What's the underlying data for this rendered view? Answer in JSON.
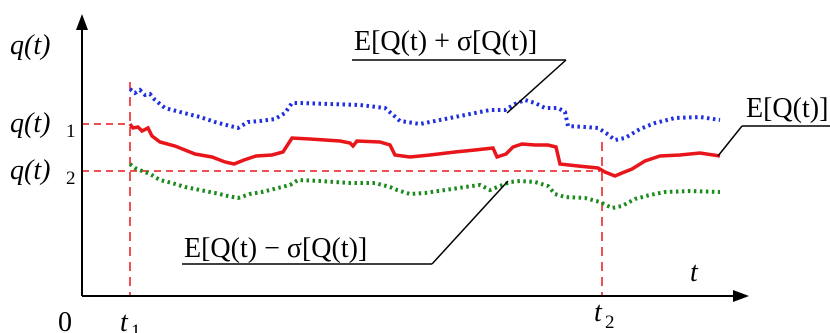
{
  "diagram": {
    "axis_labels": {
      "y_axis": "q(t)",
      "x_axis": "t",
      "origin": "0"
    },
    "level_labels": {
      "q1": {
        "base": "q(t)",
        "subscript": "1"
      },
      "q2": {
        "base": "q(t)",
        "subscript": "2"
      }
    },
    "time_labels": {
      "t1": {
        "base": "t",
        "subscript": "1"
      },
      "t2": {
        "base": "t",
        "subscript": "2"
      }
    },
    "curve_labels": {
      "upper": "E[Q(t) + σ[Q(t)]",
      "mean": "E[Q(t)]",
      "lower": "E[Q(t) − σ[Q(t)]"
    },
    "colors": {
      "upper": "#1f2fe0",
      "mean": "#e8161b",
      "lower": "#1a8a1a",
      "reference": "#e8161b",
      "axis": "#000000"
    }
  }
}
